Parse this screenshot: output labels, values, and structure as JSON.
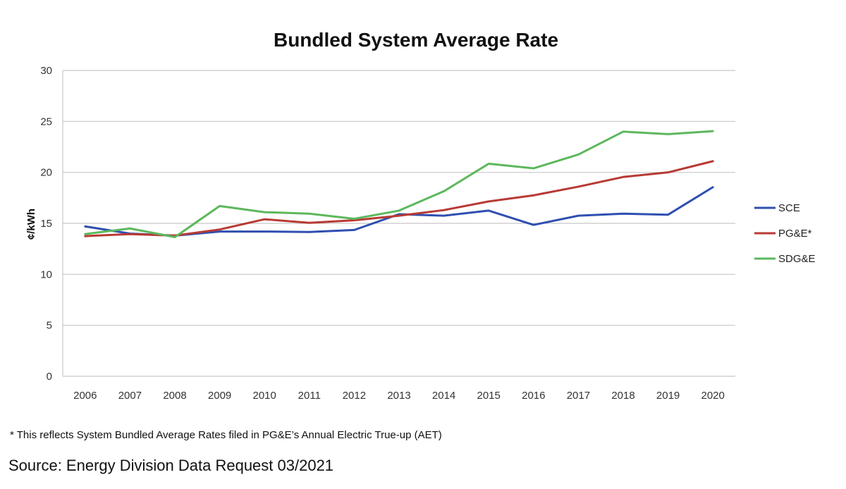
{
  "chart_data": {
    "type": "line",
    "title": "Bundled System Average Rate",
    "xlabel": "",
    "ylabel": "¢/kWh",
    "ylim": [
      0,
      30
    ],
    "yticks": [
      0,
      5,
      10,
      15,
      20,
      25,
      30
    ],
    "grid": true,
    "legend_position": "right",
    "categories": [
      "2006",
      "2007",
      "2008",
      "2009",
      "2010",
      "2011",
      "2012",
      "2013",
      "2014",
      "2015",
      "2016",
      "2017",
      "2018",
      "2019",
      "2020"
    ],
    "series": [
      {
        "name": "SCE",
        "color": "#2f4fb0",
        "values": [
          14.7,
          14.0,
          13.8,
          14.2,
          14.2,
          14.15,
          14.35,
          15.9,
          15.75,
          16.25,
          14.85,
          15.75,
          15.95,
          15.85,
          18.55
        ]
      },
      {
        "name": "PG&E*",
        "color": "#b83a34",
        "values": [
          13.75,
          13.95,
          13.8,
          14.4,
          15.4,
          15.05,
          15.3,
          15.75,
          16.3,
          17.15,
          17.75,
          18.6,
          19.55,
          20.0,
          21.1
        ]
      },
      {
        "name": "SDG&E",
        "color": "#5cb85c",
        "values": [
          13.95,
          14.5,
          13.65,
          16.7,
          16.1,
          15.95,
          15.45,
          16.25,
          18.15,
          20.85,
          20.4,
          21.75,
          24.0,
          23.75,
          24.05
        ]
      }
    ]
  },
  "footnote": "* This reflects System Bundled Average Rates filed in PG&E’s Annual Electric True-up (AET)",
  "source": "Source:  Energy Division Data Request 03/2021"
}
